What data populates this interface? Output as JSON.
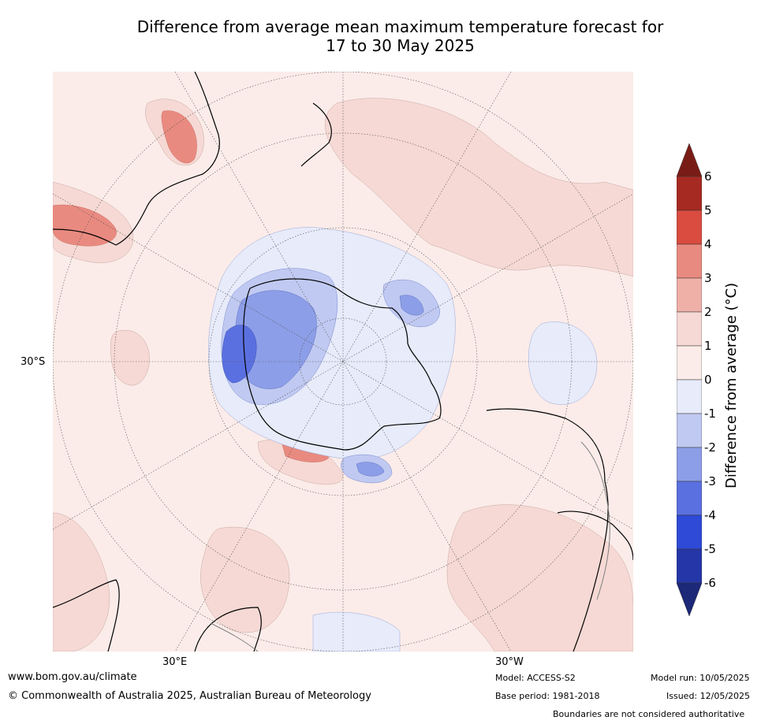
{
  "title": {
    "line1": "Difference from average mean maximum temperature forecast for",
    "line2": "17 to 30 May 2025"
  },
  "map": {
    "projection": "south polar stereographic",
    "labels": {
      "lat": "30°S",
      "lon_west": "30°E",
      "lon_east": "30°W"
    },
    "colors": {
      "ocean_base": "#fbece9",
      "land_line": "#000000",
      "border_line": "#808080",
      "grid_line": "#555555"
    }
  },
  "colorbar": {
    "title": "Difference from average (°C)",
    "ticks": [
      "6",
      "5",
      "4",
      "3",
      "2",
      "1",
      "0",
      "-1",
      "-2",
      "-3",
      "-4",
      "-5",
      "-6"
    ],
    "colors": [
      "#7a1c16",
      "#a72a22",
      "#d94c3f",
      "#e98a80",
      "#efb0a8",
      "#f6d9d4",
      "#fbece9",
      "#e7ebfa",
      "#c0c9f1",
      "#8d9ee8",
      "#5b70e0",
      "#2e4ad6",
      "#2536a8",
      "#1c2878"
    ]
  },
  "footer": {
    "website": "www.bom.gov.au/climate",
    "copyright": "© Commonwealth of Australia 2025, Australian Bureau of Meteorology",
    "model": "Model: ACCESS-S2",
    "base_period": "Base period: 1981-2018",
    "model_run": "Model run: 10/05/2025",
    "issued": "Issued: 12/05/2025",
    "disclaimer": "Boundaries are not considered authoritative"
  }
}
